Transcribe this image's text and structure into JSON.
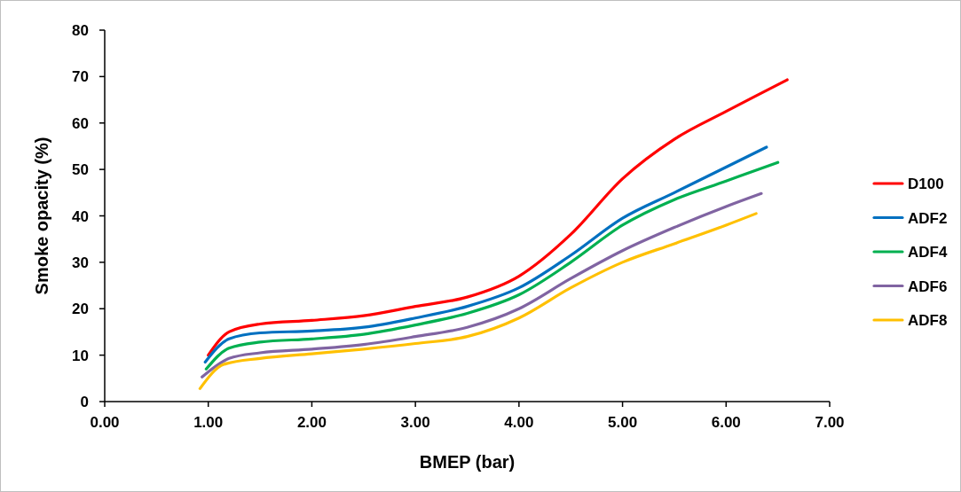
{
  "chart_data": {
    "type": "line",
    "xlabel": "BMEP (bar)",
    "ylabel": "Smoke opacity (%)",
    "xlim": [
      0,
      7
    ],
    "ylim": [
      0,
      80
    ],
    "xticks": [
      {
        "value": 0,
        "label": "0.00"
      },
      {
        "value": 1,
        "label": "1.00"
      },
      {
        "value": 2,
        "label": "2.00"
      },
      {
        "value": 3,
        "label": "3.00"
      },
      {
        "value": 4,
        "label": "4.00"
      },
      {
        "value": 5,
        "label": "5.00"
      },
      {
        "value": 6,
        "label": "6.00"
      },
      {
        "value": 7,
        "label": "7.00"
      }
    ],
    "yticks": [
      0,
      10,
      20,
      30,
      40,
      50,
      60,
      70,
      80
    ],
    "grid": false,
    "legend": "right",
    "marker": "none",
    "line_style": "solid",
    "series": [
      {
        "name": "D100",
        "color": "#ff0000",
        "x": [
          1.0,
          1.2,
          1.5,
          2.0,
          2.5,
          3.0,
          3.5,
          4.0,
          4.5,
          5.0,
          5.5,
          6.0,
          6.59
        ],
        "values": [
          10,
          15,
          16.7,
          17.5,
          18.5,
          20.5,
          22.5,
          27,
          36,
          48,
          56.5,
          62.5,
          69.3
        ]
      },
      {
        "name": "ADF2",
        "color": "#0070c0",
        "x": [
          0.97,
          1.2,
          1.5,
          2.0,
          2.5,
          3.0,
          3.5,
          4.0,
          4.5,
          5.0,
          5.5,
          6.0,
          6.39
        ],
        "values": [
          8.5,
          13.5,
          14.8,
          15.2,
          16,
          18,
          20.5,
          24.5,
          31.5,
          39.5,
          45,
          50.5,
          54.8
        ]
      },
      {
        "name": "ADF4",
        "color": "#00b050",
        "x": [
          0.98,
          1.2,
          1.5,
          2.0,
          2.5,
          3.0,
          3.5,
          4.0,
          4.5,
          5.0,
          5.5,
          6.0,
          6.5
        ],
        "values": [
          7,
          11.5,
          12.8,
          13.5,
          14.5,
          16.5,
          19,
          23,
          30,
          38,
          43.5,
          47.5,
          51.5
        ]
      },
      {
        "name": "ADF6",
        "color": "#8064a2",
        "x": [
          0.94,
          1.2,
          1.5,
          2.0,
          2.5,
          3.0,
          3.5,
          4.0,
          4.5,
          5.0,
          5.5,
          6.0,
          6.34
        ],
        "values": [
          5.3,
          9.3,
          10.5,
          11.3,
          12.3,
          14,
          16,
          20,
          26.5,
          32.5,
          37.5,
          42,
          44.8
        ]
      },
      {
        "name": "ADF8",
        "color": "#ffc000",
        "x": [
          0.92,
          1.15,
          1.5,
          2.0,
          2.5,
          3.0,
          3.5,
          4.0,
          4.5,
          5.0,
          5.5,
          6.0,
          6.29
        ],
        "values": [
          2.8,
          8,
          9.3,
          10.3,
          11.3,
          12.5,
          14,
          18,
          24.5,
          30,
          34,
          38,
          40.5
        ]
      }
    ]
  }
}
